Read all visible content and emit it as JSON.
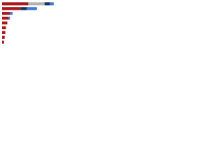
{
  "chart_data": {
    "type": "stacked-bar-horizontal",
    "categories": [
      null,
      null,
      null,
      null,
      null,
      null,
      null,
      null,
      null
    ],
    "series": [
      {
        "color": "#a8191b",
        "values": [
          40,
          28,
          12,
          10,
          8,
          6,
          5,
          4,
          3
        ]
      },
      {
        "color": "#b3b3b3",
        "values": [
          25,
          0,
          0,
          0,
          0,
          0,
          0,
          0,
          0
        ]
      },
      {
        "color": "#1a2f5a",
        "values": [
          8,
          10,
          0,
          0,
          0,
          0,
          0,
          0,
          0
        ]
      },
      {
        "color": "#3a7bd5",
        "values": [
          6,
          15,
          4,
          2,
          0,
          0,
          0,
          0,
          0
        ]
      }
    ],
    "xlim": [
      0,
      100
    ]
  }
}
